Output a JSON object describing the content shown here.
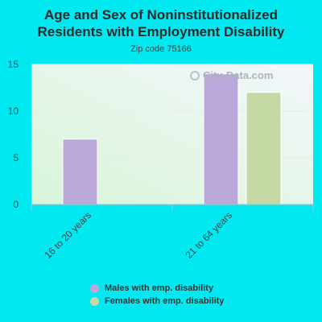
{
  "header": {
    "title_line1": "Age and Sex of Noninstitutionalized",
    "title_line2": "Residents with Employment Disability",
    "subtitle": "Zip code 75166"
  },
  "watermark": "City-Data.com",
  "chart_data": {
    "type": "bar",
    "title": "Age and Sex of Noninstitutionalized Residents with Employment Disability",
    "subtitle": "Zip code 75166",
    "categories": [
      "16 to 20 years",
      "21 to 64 years"
    ],
    "series": [
      {
        "name": "Males with emp. disability",
        "values": [
          7,
          14
        ],
        "color": "#bba8db"
      },
      {
        "name": "Females with emp. disability",
        "values": [
          null,
          12
        ],
        "color": "#c5d9a5"
      }
    ],
    "ylim": [
      0,
      15
    ],
    "yticks": [
      0,
      5,
      10,
      15
    ],
    "grid": true,
    "legend_position": "bottom"
  }
}
